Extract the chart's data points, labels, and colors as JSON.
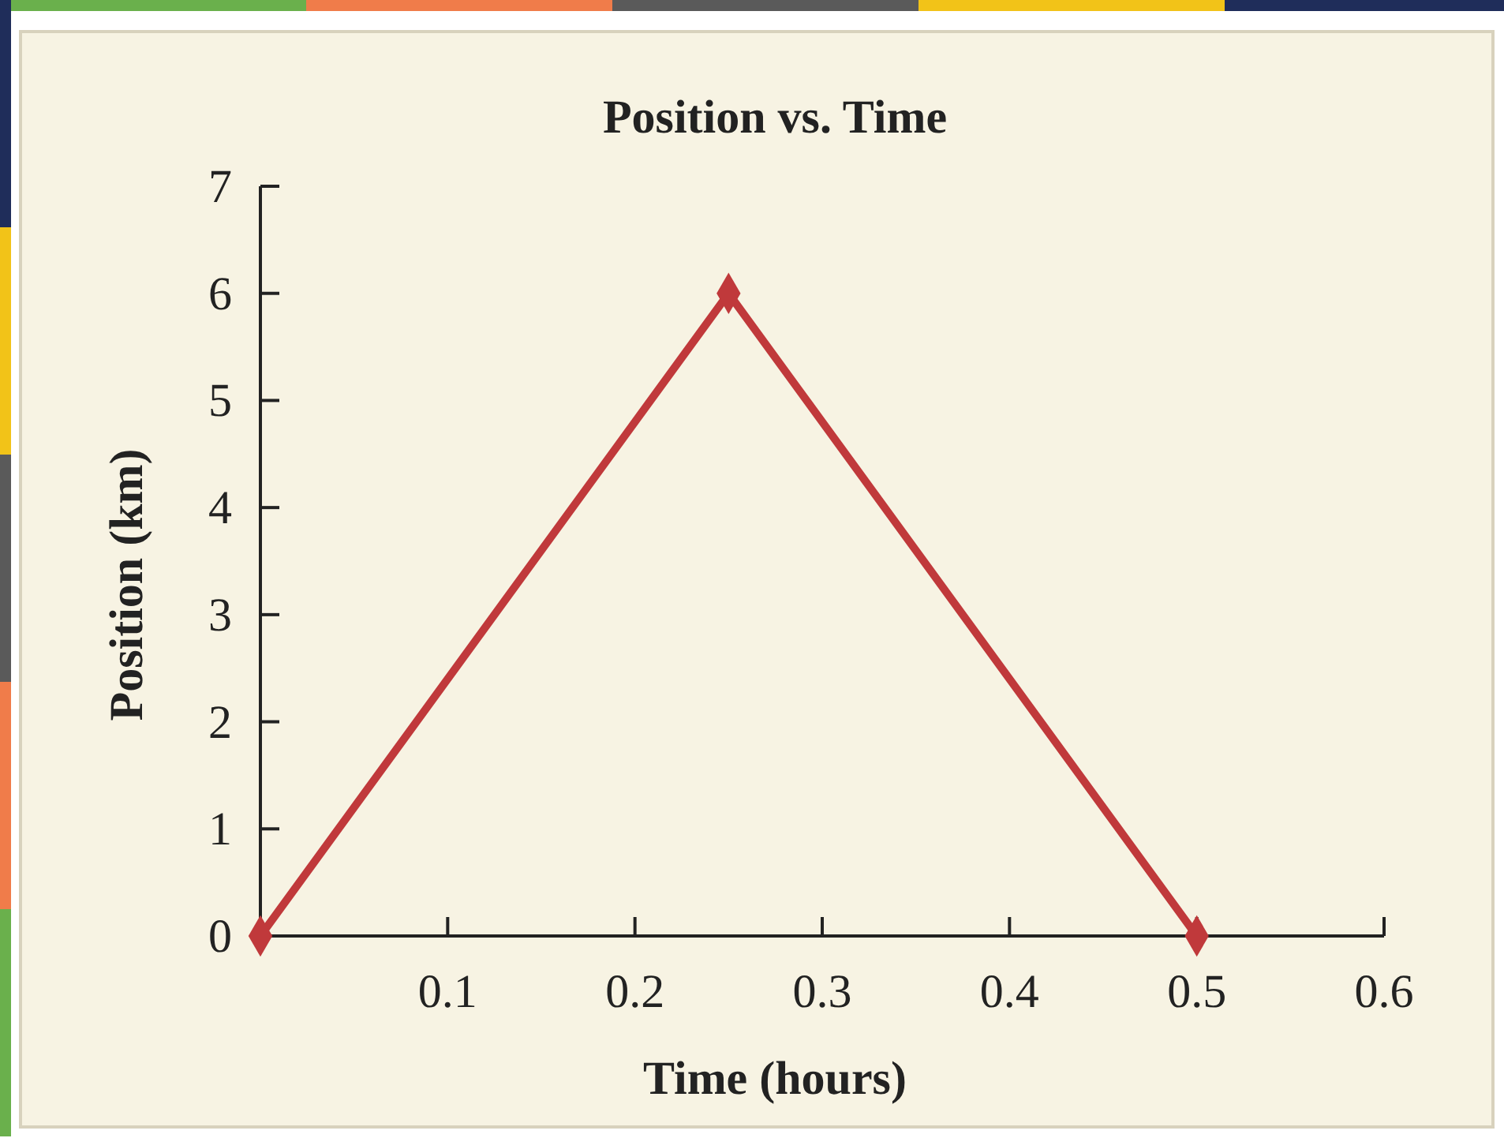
{
  "chart_data": {
    "type": "line",
    "title": "Position vs. Time",
    "xlabel": "Time (hours)",
    "ylabel": "Position (km)",
    "x": [
      0,
      0.25,
      0.5
    ],
    "series": [
      {
        "color": "#c0393b",
        "values": [
          0,
          6,
          0
        ]
      }
    ],
    "xlim": [
      0,
      0.6
    ],
    "xticks": [
      0.1,
      0.2,
      0.3,
      0.4,
      0.5,
      0.6
    ],
    "ylim": [
      0,
      7
    ],
    "yticks": [
      0,
      1,
      2,
      3,
      4,
      5,
      6,
      7
    ],
    "grid": false,
    "marker": "diamond",
    "line_style": "solid"
  }
}
